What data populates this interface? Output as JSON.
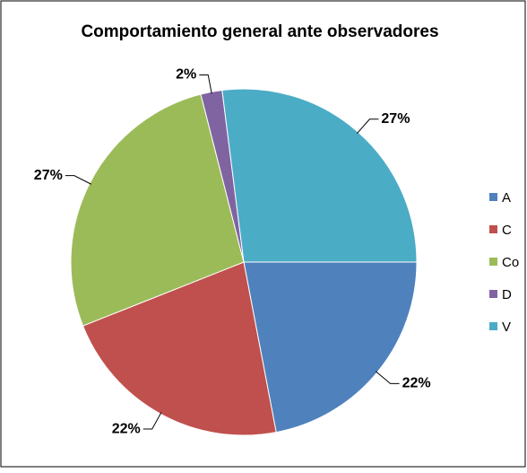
{
  "chart_data": {
    "type": "pie",
    "title": "Comportamiento general ante observadores",
    "categories": [
      "A",
      "C",
      "Co",
      "D",
      "V"
    ],
    "values": [
      22,
      22,
      27,
      2,
      27
    ],
    "value_labels": [
      "22%",
      "22%",
      "27%",
      "2%",
      "27%"
    ],
    "colors": [
      "#4f81bd",
      "#c0504d",
      "#9bbb59",
      "#8064a2",
      "#4bacc6"
    ],
    "legend": "right"
  }
}
